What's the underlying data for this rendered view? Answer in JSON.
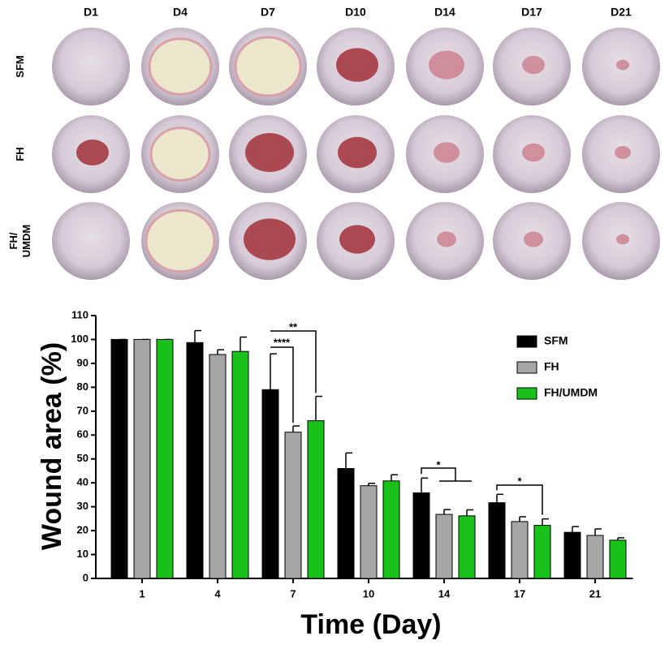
{
  "photos": {
    "columns": [
      "D1",
      "D4",
      "D7",
      "D10",
      "D14",
      "D17",
      "D21"
    ],
    "rows": [
      "SFM",
      "FH",
      "FH/\nUMDM"
    ]
  },
  "chart_data": {
    "type": "bar",
    "ylabel": "Wound area (%)",
    "xlabel": "Time (Day)",
    "categories": [
      "1",
      "4",
      "7",
      "10",
      "14",
      "17",
      "21"
    ],
    "series": [
      {
        "name": "SFM",
        "color": "#000000",
        "values": [
          100,
          98.7,
          79,
          46,
          35.8,
          31.7,
          19.3
        ],
        "errors": [
          0,
          5,
          15,
          6.5,
          6.2,
          3.5,
          2.4
        ]
      },
      {
        "name": "FH",
        "color": "#a6a6a8",
        "values": [
          100,
          93.7,
          61.2,
          38.8,
          26.8,
          23.8,
          18
        ],
        "errors": [
          0,
          2,
          2.6,
          1,
          2,
          2,
          2.7
        ]
      },
      {
        "name": "FH/UMDM",
        "color": "#19c219",
        "values": [
          100,
          95,
          66,
          40.8,
          26.2,
          22.2,
          16
        ],
        "errors": [
          0,
          6,
          10.2,
          2.6,
          2.5,
          2.7,
          1
        ]
      }
    ],
    "ylim": [
      0,
      110
    ],
    "yticks": [
      0,
      10,
      20,
      30,
      40,
      50,
      60,
      70,
      80,
      90,
      100,
      110
    ],
    "legend": "upper right",
    "annotations": [
      "**",
      "****",
      "*",
      "*"
    ]
  }
}
